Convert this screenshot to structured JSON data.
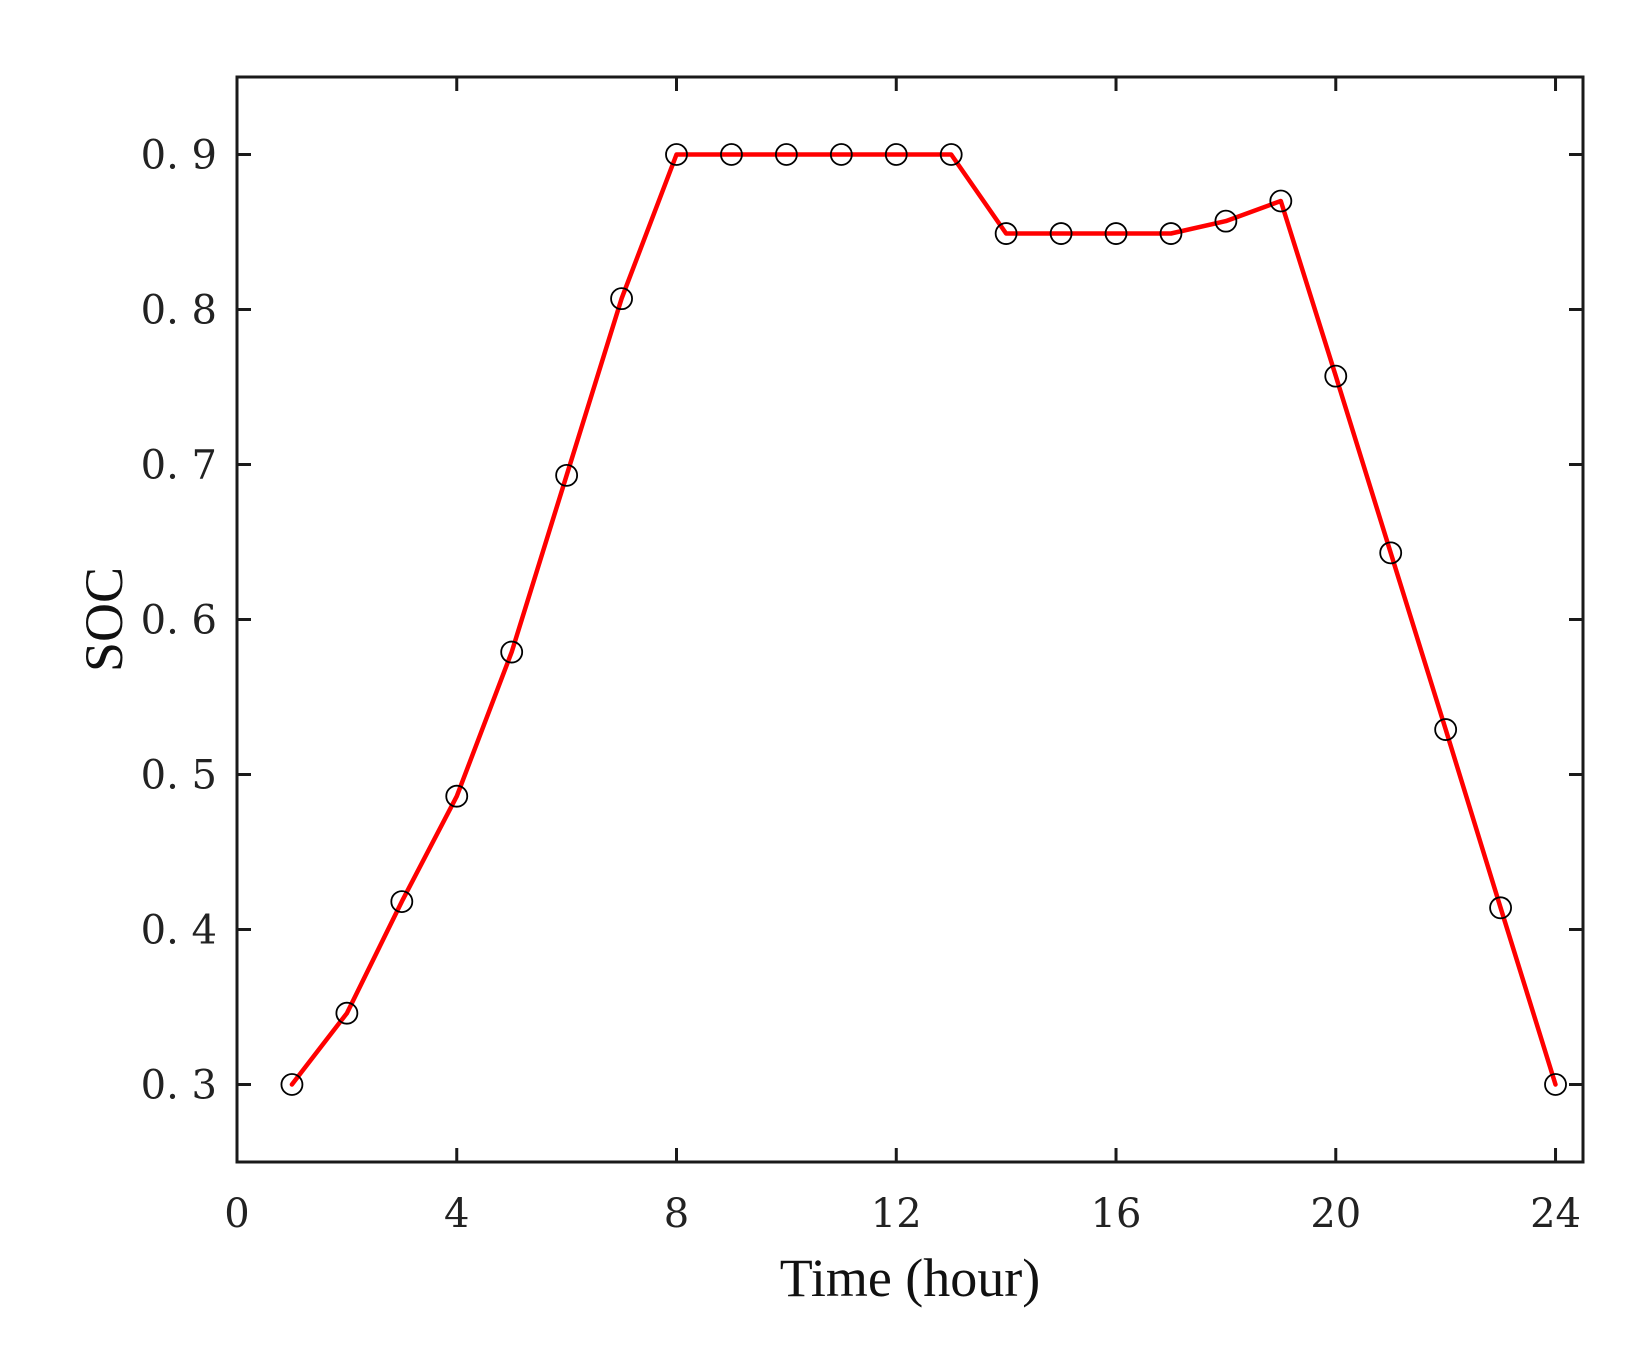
{
  "chart_data": {
    "type": "line",
    "title": "",
    "xlabel": "Time (hour)",
    "ylabel": "SOC",
    "xlim": [
      0,
      24.5
    ],
    "ylim": [
      0.25,
      0.95
    ],
    "xticks": [
      0,
      4,
      8,
      12,
      16,
      20,
      24
    ],
    "xtick_labels": [
      "0",
      "4",
      "8",
      "12",
      "16",
      "20",
      "24"
    ],
    "yticks": [
      0.3,
      0.4,
      0.5,
      0.6,
      0.7,
      0.8,
      0.9
    ],
    "ytick_labels": [
      "0. 3",
      "0. 4",
      "0. 5",
      "0. 6",
      "0. 7",
      "0. 8",
      "0. 9"
    ],
    "grid": false,
    "legend": "none",
    "series": [
      {
        "line_color": "#ff0000",
        "marker": "open-circle",
        "marker_color": "#000000",
        "x": [
          1,
          2,
          3,
          4,
          5,
          6,
          7,
          8,
          9,
          10,
          11,
          12,
          13,
          14,
          15,
          16,
          17,
          18,
          19,
          20,
          21,
          22,
          23,
          24
        ],
        "y": [
          0.3,
          0.346,
          0.418,
          0.486,
          0.579,
          0.693,
          0.807,
          0.9,
          0.9,
          0.9,
          0.9,
          0.9,
          0.9,
          0.849,
          0.849,
          0.849,
          0.849,
          0.857,
          0.87,
          0.757,
          0.643,
          0.529,
          0.414,
          0.3
        ]
      }
    ]
  }
}
